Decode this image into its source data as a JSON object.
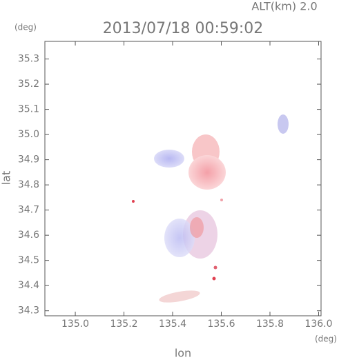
{
  "chart_data": {
    "type": "radar-map",
    "title": "2013/07/18 00:59:02",
    "altitude_label": "ALT(km) 2.0",
    "xlabel": "lon",
    "ylabel": "lat",
    "x_unit": "(deg)",
    "y_unit": "(deg)",
    "xlim": [
      134.875,
      136.01
    ],
    "ylim": [
      34.28,
      35.37
    ],
    "xticks": [
      {
        "value": 135,
        "label": "135.0"
      },
      135.2,
      135.4,
      135.6,
      135.8,
      {
        "value": 136,
        "label": "136.0"
      }
    ],
    "yticks": [
      34.3,
      34.4,
      34.5,
      34.6,
      34.7,
      34.8,
      34.9,
      {
        "value": 35,
        "label": "35.0"
      },
      35.1,
      35.2,
      35.3
    ]
  }
}
